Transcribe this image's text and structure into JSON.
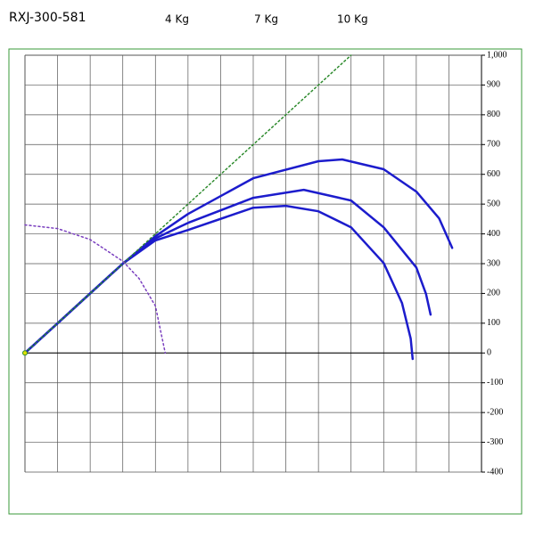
{
  "chart_data": {
    "type": "line",
    "title": "RXJ-300-581",
    "xlim": [
      0,
      1400
    ],
    "xticks": [
      0,
      100,
      200,
      300,
      400,
      500,
      600,
      700,
      800,
      900,
      1000,
      1100,
      1200,
      1300,
      1400
    ],
    "ylim": [
      -400,
      1000
    ],
    "yticks": [
      {
        "value": 1000,
        "label": "1,000"
      },
      900,
      800,
      700,
      600,
      500,
      400,
      300,
      200,
      100,
      0,
      -100,
      -200,
      -300,
      -400
    ],
    "grid": true,
    "series": [
      {
        "name": "4 Kg",
        "color": "#1c1ccc",
        "style": "solid",
        "x": [
          0,
          100,
          200,
          300,
          400,
          500,
          700,
          800,
          900,
          1000,
          1100,
          1156,
          1183,
          1189
        ],
        "values": [
          0,
          100,
          200,
          300,
          378,
          413,
          488,
          494,
          476,
          422,
          302,
          168,
          48,
          -20
        ]
      },
      {
        "name": "7 Kg",
        "color": "#1c1ccc",
        "style": "solid",
        "x": [
          0,
          100,
          200,
          300,
          400,
          500,
          700,
          855,
          1000,
          1100,
          1200,
          1230,
          1244
        ],
        "values": [
          0,
          100,
          200,
          300,
          385,
          437,
          521,
          548,
          512,
          422,
          287,
          198,
          129
        ]
      },
      {
        "name": "10 Kg",
        "color": "#1c1ccc",
        "style": "solid",
        "x": [
          0,
          100,
          200,
          300,
          400,
          500,
          700,
          900,
          973,
          1100,
          1200,
          1270,
          1310
        ],
        "values": [
          0,
          100,
          200,
          300,
          392,
          467,
          587,
          644,
          650,
          617,
          542,
          452,
          353
        ]
      },
      {
        "color": "#2e8b2e",
        "style": "dotted",
        "x": [
          0,
          1000
        ],
        "values": [
          0,
          1000
        ]
      },
      {
        "color": "#7a3fbf",
        "style": "dotted",
        "x": [
          0,
          100,
          200,
          300,
          350,
          400,
          430
        ],
        "values": [
          430,
          418,
          381,
          308,
          250,
          158,
          0
        ]
      }
    ]
  }
}
